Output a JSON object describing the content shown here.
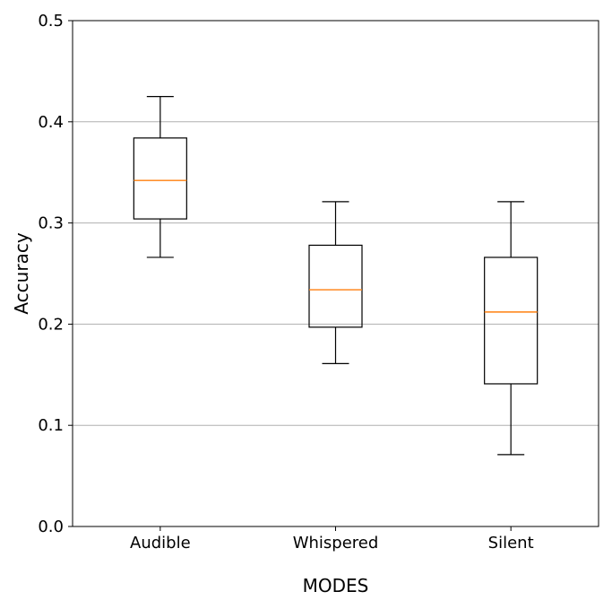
{
  "chart_data": {
    "type": "box",
    "title": "",
    "xlabel": "MODES",
    "ylabel": "Accuracy",
    "ylim": [
      0,
      0.5
    ],
    "yticks": [
      0.0,
      0.1,
      0.2,
      0.3,
      0.4,
      0.5
    ],
    "ytick_labels": [
      "0.0",
      "0.1",
      "0.2",
      "0.3",
      "0.4",
      "0.5"
    ],
    "grid": "horizontal",
    "categories": [
      "Audible",
      "Whispered",
      "Silent"
    ],
    "boxes": [
      {
        "category": "Audible",
        "whisker_low": 0.266,
        "q1": 0.304,
        "median": 0.342,
        "q3": 0.384,
        "whisker_high": 0.425
      },
      {
        "category": "Whispered",
        "whisker_low": 0.161,
        "q1": 0.197,
        "median": 0.234,
        "q3": 0.278,
        "whisker_high": 0.321
      },
      {
        "category": "Silent",
        "whisker_low": 0.071,
        "q1": 0.141,
        "median": 0.212,
        "q3": 0.266,
        "whisker_high": 0.321
      }
    ],
    "colors": {
      "box": "#000000",
      "median": "#ff7f0e",
      "grid": "#b0b0b0"
    }
  }
}
